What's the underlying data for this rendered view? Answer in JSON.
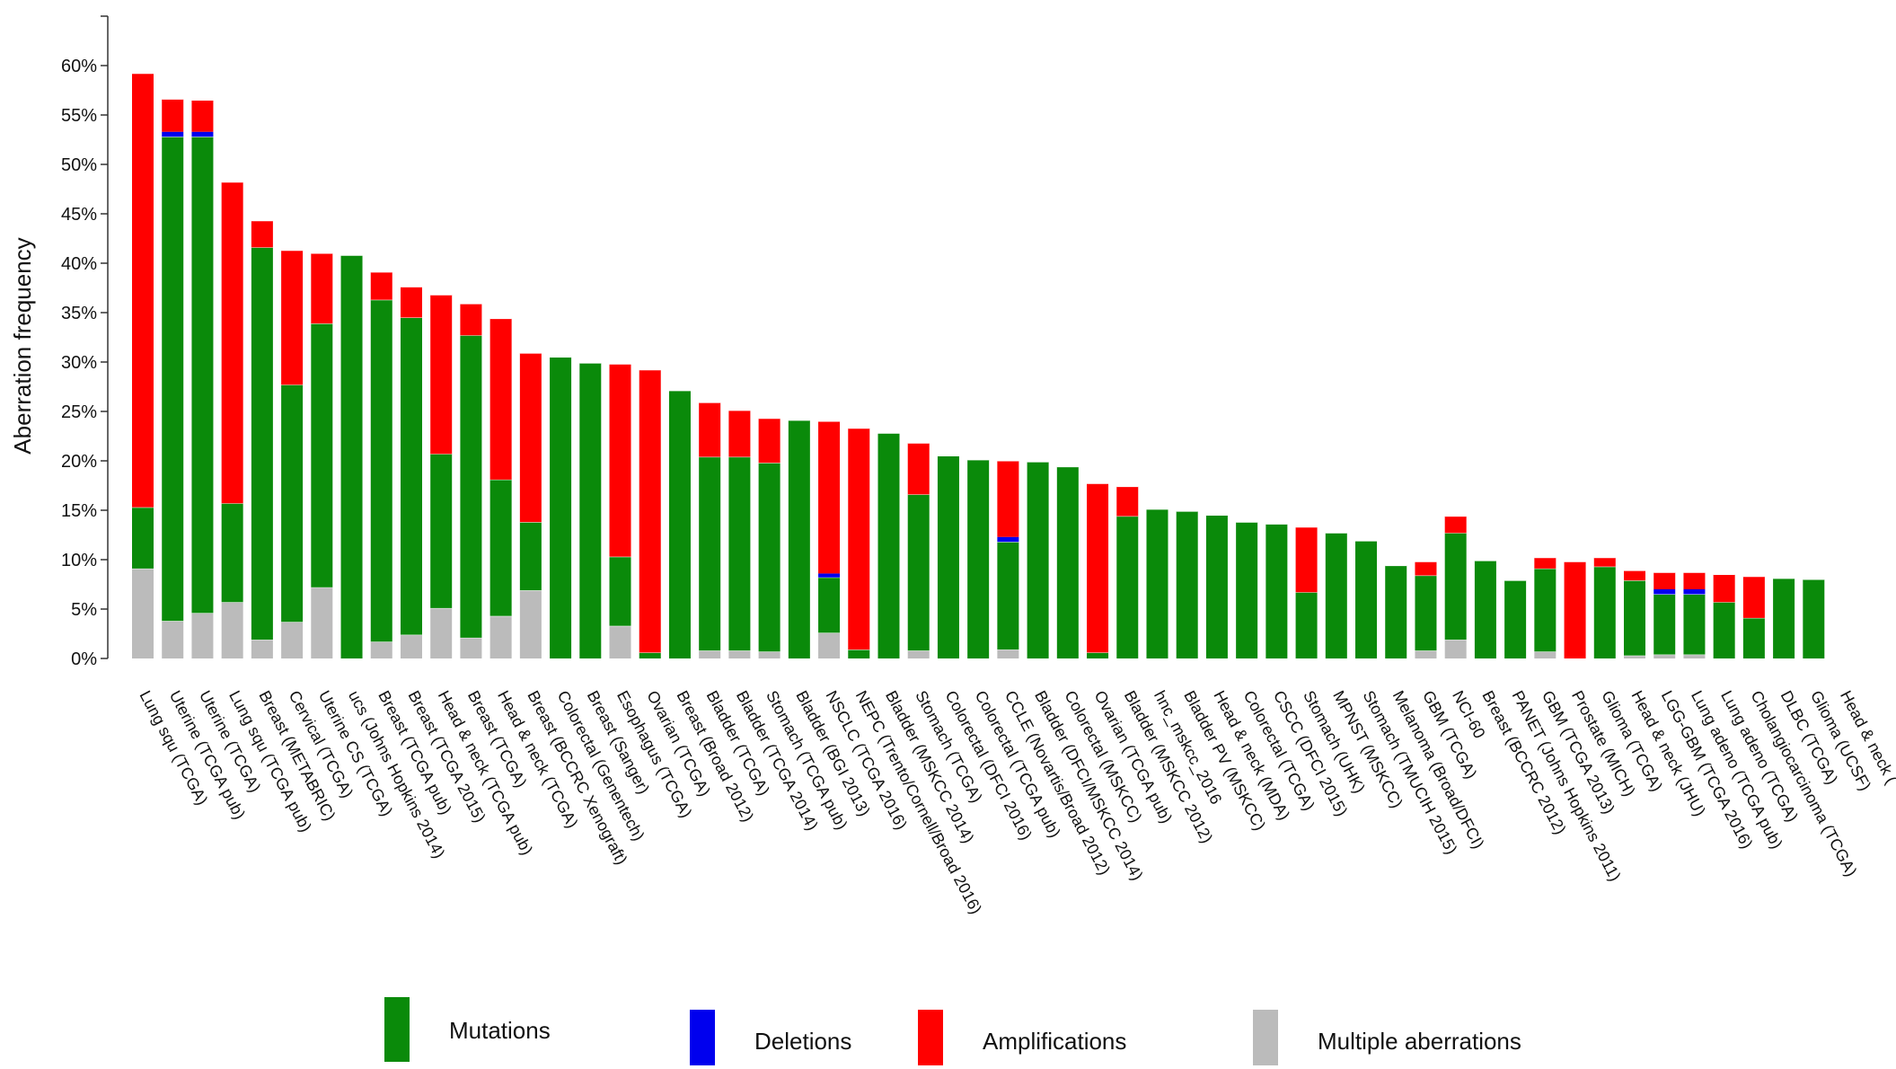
{
  "chart_data": {
    "type": "bar",
    "stacked": true,
    "ylabel": "Aberration frequency",
    "ylim": [
      0,
      65
    ],
    "yticks": [
      0,
      5,
      10,
      15,
      20,
      25,
      30,
      35,
      40,
      45,
      50,
      55,
      60
    ],
    "ytick_labels": [
      "0%",
      "5%",
      "10%",
      "15%",
      "20%",
      "25%",
      "30%",
      "35%",
      "40%",
      "45%",
      "50%",
      "55%",
      "60%"
    ],
    "categories": [
      "Lung squ (TCGA)",
      "Uterine (TCGA pub)",
      "Uterine (TCGA)",
      "Lung squ (TCGA pub)",
      "Breast (METABRIC)",
      "Cervical (TCGA)",
      "Uterine CS (TCGA)",
      "ucs (Johns Hopkins 2014)",
      "Breast (TCGA pub)",
      "Breast (TCGA 2015)",
      "Head & neck (TCGA pub)",
      "Breast (TCGA)",
      "Head & neck (TCGA)",
      "Breast (BCCRC Xenograft)",
      "Colorectal (Genentech)",
      "Breast (Sanger)",
      "Esophagus (TCGA)",
      "Ovarian (TCGA)",
      "Breast (Broad 2012)",
      "Bladder (TCGA)",
      "Bladder (TCGA 2014)",
      "Stomach (TCGA pub)",
      "Bladder (BGI 2013)",
      "NSCLC (TCGA 2016)",
      "NEPC (Trento/Cornell/Broad 2016)",
      "Bladder (MSKCC 2014)",
      "Stomach (TCGA)",
      "Colorectal (DFCI 2016)",
      "Colorectal (TCGA pub)",
      "CCLE (Novartis/Broad 2012)",
      "Bladder (DFCI/MSKCC 2014)",
      "Colorectal (MSKCC)",
      "Ovarian (TCGA pub)",
      "Bladder (MSKCC 2012)",
      "hnc_mskcc_2016",
      "Bladder PV (MSKCC)",
      "Head & neck (MDA)",
      "Colorectal (TCGA)",
      "CSCC (DFCI 2015)",
      "Stomach (UHK)",
      "MPNST (MSKCC)",
      "Stomach (TMUCIH 2015)",
      "Melanoma (Broad/DFCI)",
      "GBM (TCGA)",
      "NCI-60",
      "Breast (BCCRC 2012)",
      "PANET (Johns Hopkins 2011)",
      "GBM (TCGA 2013)",
      "Prostate (MICH)",
      "Glioma (TCGA)",
      "Head & neck (JHU)",
      "LGG-GBM (TCGA 2016)",
      "Lung adeno (TCGA pub)",
      "Lung adeno (TCGA)",
      "Cholangiocarcinoma (TCGA)",
      "DLBC (TCGA)",
      "Glioma (UCSF)",
      "Head & neck ("
    ],
    "series": [
      {
        "name": "Multiple aberrations",
        "color": "#bbbbbb",
        "values": [
          9.1,
          3.8,
          4.6,
          5.7,
          1.9,
          3.7,
          7.2,
          0,
          1.7,
          2.4,
          5.1,
          2.1,
          4.3,
          6.9,
          0,
          0,
          3.3,
          0,
          0,
          0.8,
          0.8,
          0.7,
          0,
          2.6,
          0,
          0,
          0.8,
          0,
          0,
          0.9,
          0,
          0,
          0,
          0,
          0,
          0,
          0,
          0,
          0,
          0,
          0,
          0,
          0,
          0.8,
          1.9,
          0,
          0,
          0.7,
          0,
          0,
          0.3,
          0.4,
          0.4,
          0,
          0,
          0,
          0,
          0
        ]
      },
      {
        "name": "Mutations",
        "color": "#0a8a0a",
        "values": [
          6.2,
          49.0,
          48.2,
          10.0,
          39.7,
          24.0,
          26.7,
          40.8,
          34.6,
          32.1,
          15.6,
          30.6,
          13.8,
          6.9,
          30.5,
          29.9,
          7.0,
          0.6,
          27.1,
          19.6,
          19.6,
          19.1,
          24.1,
          5.6,
          0.9,
          22.8,
          15.8,
          20.5,
          20.1,
          10.9,
          19.9,
          19.4,
          0.6,
          14.4,
          15.1,
          14.9,
          14.5,
          13.8,
          13.6,
          6.7,
          12.7,
          11.9,
          9.4,
          7.6,
          10.8,
          9.9,
          7.9,
          8.4,
          0,
          9.3,
          7.6,
          6.1,
          6.1,
          5.7,
          4.1,
          8.1,
          8.0,
          0
        ]
      },
      {
        "name": "Deletions",
        "color": "#0000ee",
        "values": [
          0,
          0.5,
          0.5,
          0,
          0,
          0,
          0,
          0,
          0,
          0,
          0,
          0,
          0,
          0,
          0,
          0,
          0,
          0,
          0,
          0,
          0,
          0,
          0,
          0.4,
          0,
          0,
          0,
          0,
          0,
          0.5,
          0,
          0,
          0,
          0,
          0,
          0,
          0,
          0,
          0,
          0,
          0,
          0,
          0,
          0,
          0,
          0,
          0,
          0,
          0,
          0,
          0,
          0.5,
          0.5,
          0,
          0,
          0,
          0,
          0
        ]
      },
      {
        "name": "Amplifications",
        "color": "#ff0000",
        "values": [
          43.9,
          3.3,
          3.2,
          32.5,
          2.7,
          13.6,
          7.1,
          0,
          2.8,
          3.1,
          16.1,
          3.2,
          16.3,
          17.1,
          0,
          0,
          19.5,
          28.6,
          0,
          5.5,
          4.7,
          4.5,
          0,
          15.4,
          22.4,
          0,
          5.2,
          0,
          0,
          7.7,
          0,
          0,
          17.1,
          3.0,
          0,
          0,
          0,
          0,
          0,
          6.6,
          0,
          0,
          0,
          1.4,
          1.7,
          0,
          0,
          1.1,
          9.8,
          0.9,
          1.0,
          1.7,
          1.7,
          2.8,
          4.2,
          0,
          0,
          0
        ]
      }
    ],
    "legend": {
      "position": "bottom",
      "items": [
        {
          "label": "Mutations",
          "color": "#0a8a0a"
        },
        {
          "label": "Deletions",
          "color": "#0000ee"
        },
        {
          "label": "Amplifications",
          "color": "#ff0000"
        },
        {
          "label": "Multiple aberrations",
          "color": "#bbbbbb"
        }
      ]
    }
  }
}
